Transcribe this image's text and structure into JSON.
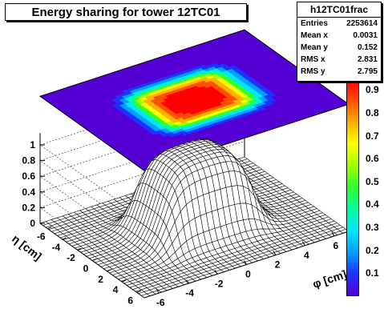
{
  "chart_data": {
    "type": "surface3d",
    "title": "Energy sharing for tower 12TC01",
    "xlabel": "η [cm]",
    "ylabel": "φ [cm]",
    "x_range": [
      -7,
      7
    ],
    "y_range": [
      -7,
      7
    ],
    "zlim": [
      0,
      1
    ],
    "x_ticks": [
      "-6",
      "-4",
      "-2",
      "0",
      "2",
      "4",
      "6"
    ],
    "y_ticks": [
      "-6",
      "-4",
      "-2",
      "0",
      "2",
      "4",
      "6"
    ],
    "z_ticks": [
      "0",
      "0.2",
      "0.4",
      "0.6",
      "0.8",
      "1"
    ],
    "palette_ticks": [
      "0.1",
      "0.2",
      "0.3",
      "0.4",
      "0.5",
      "0.6",
      "0.7",
      "0.8",
      "0.9"
    ],
    "surface": {
      "plateau": 1.0,
      "half_width": 3.0,
      "edge_width": 1.0
    }
  },
  "stats": {
    "name": "h12TC01frac",
    "rows": [
      {
        "label": "Entries",
        "value": "2253614"
      },
      {
        "label": "Mean x",
        "value": "0.0031"
      },
      {
        "label": "Mean y",
        "value": "0.152"
      },
      {
        "label": "RMS x",
        "value": "2.831"
      },
      {
        "label": "RMS y",
        "value": "2.795"
      }
    ]
  },
  "colors": {
    "palette": [
      "#5500d4",
      "#1e32ff",
      "#00a0ff",
      "#00e6ff",
      "#00ffa0",
      "#30ff30",
      "#a0ff00",
      "#ffff00",
      "#ffb000",
      "#ff5000",
      "#ff0000"
    ]
  }
}
